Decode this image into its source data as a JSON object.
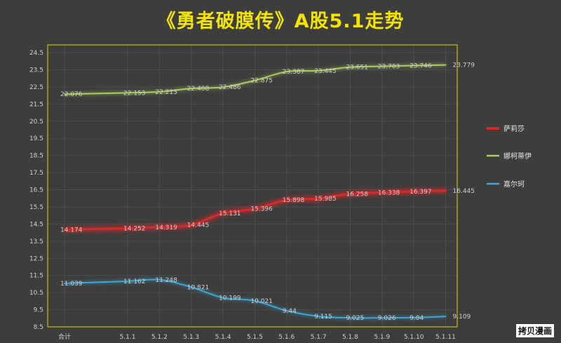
{
  "watermark": "拷贝漫画",
  "chart_data": {
    "type": "line",
    "title": "《勇者破膜传》A股5.1走势",
    "categories": [
      "合计",
      "5.1.1",
      "5.1.2",
      "5.1.3",
      "5.1.4",
      "5.1.5",
      "5.1.6",
      "5.1.7",
      "5.1.8",
      "5.1.9",
      "5.1.10",
      "5.1.11"
    ],
    "ylim": [
      8.5,
      24.5
    ],
    "ystep": 1,
    "grid": true,
    "legend": "right",
    "series": [
      {
        "name": "萨莉莎",
        "color": "#d42a2a",
        "values": [
          14.174,
          14.252,
          14.319,
          14.445,
          15.131,
          15.396,
          15.898,
          15.985,
          16.258,
          16.338,
          16.397,
          16.445
        ],
        "labels": [
          "14.174",
          "14.252",
          "14.319",
          "14.445",
          "15.131",
          "15.396",
          "15.898",
          "15.985",
          "16.258",
          "16.338",
          "16.397",
          "16.445"
        ]
      },
      {
        "name": "娜柯蒂伊",
        "color": "#a9cf5a",
        "values": [
          22.076,
          22.153,
          22.213,
          22.408,
          22.486,
          22.875,
          23.387,
          23.445,
          23.651,
          23.703,
          23.746,
          23.779
        ],
        "labels": [
          "22.076",
          "22.153",
          "22.213",
          "22.408",
          "22.486",
          "22.875",
          "23.387",
          "23.445",
          "23.651",
          "23.703",
          "23.746",
          "23.779"
        ]
      },
      {
        "name": "嘉尔珂",
        "color": "#3fa5d4",
        "values": [
          11.039,
          11.162,
          11.248,
          10.821,
          10.199,
          10.021,
          9.44,
          9.115,
          9.025,
          9.026,
          9.04,
          9.109
        ],
        "labels": [
          "11.039",
          "11.162",
          "11.248",
          "10.821",
          "10.199",
          "10.021",
          "9.44",
          "9.115",
          "9.025",
          "9.026",
          "9.04",
          "9.109"
        ]
      }
    ]
  }
}
